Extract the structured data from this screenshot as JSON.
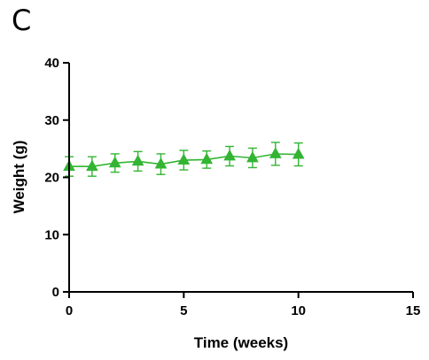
{
  "panel_label": "C",
  "chart_data": {
    "type": "line",
    "title": "",
    "xlabel": "Time (weeks)",
    "ylabel": "Weight (g)",
    "xlim": [
      0,
      15
    ],
    "ylim": [
      0,
      40
    ],
    "x_ticks": [
      0,
      5,
      10,
      15
    ],
    "y_ticks": [
      0,
      10,
      20,
      30,
      40
    ],
    "grid": false,
    "legend": "none",
    "series": [
      {
        "color": "#33b533",
        "marker": "triangle",
        "x": [
          0,
          1,
          2,
          3,
          4,
          5,
          6,
          7,
          8,
          9,
          10
        ],
        "y": [
          21.9,
          21.9,
          22.5,
          22.8,
          22.3,
          23.0,
          23.1,
          23.7,
          23.4,
          24.1,
          24.0
        ],
        "error": [
          1.7,
          1.7,
          1.6,
          1.7,
          1.8,
          1.7,
          1.5,
          1.7,
          1.7,
          2.0,
          2.0
        ]
      }
    ]
  }
}
